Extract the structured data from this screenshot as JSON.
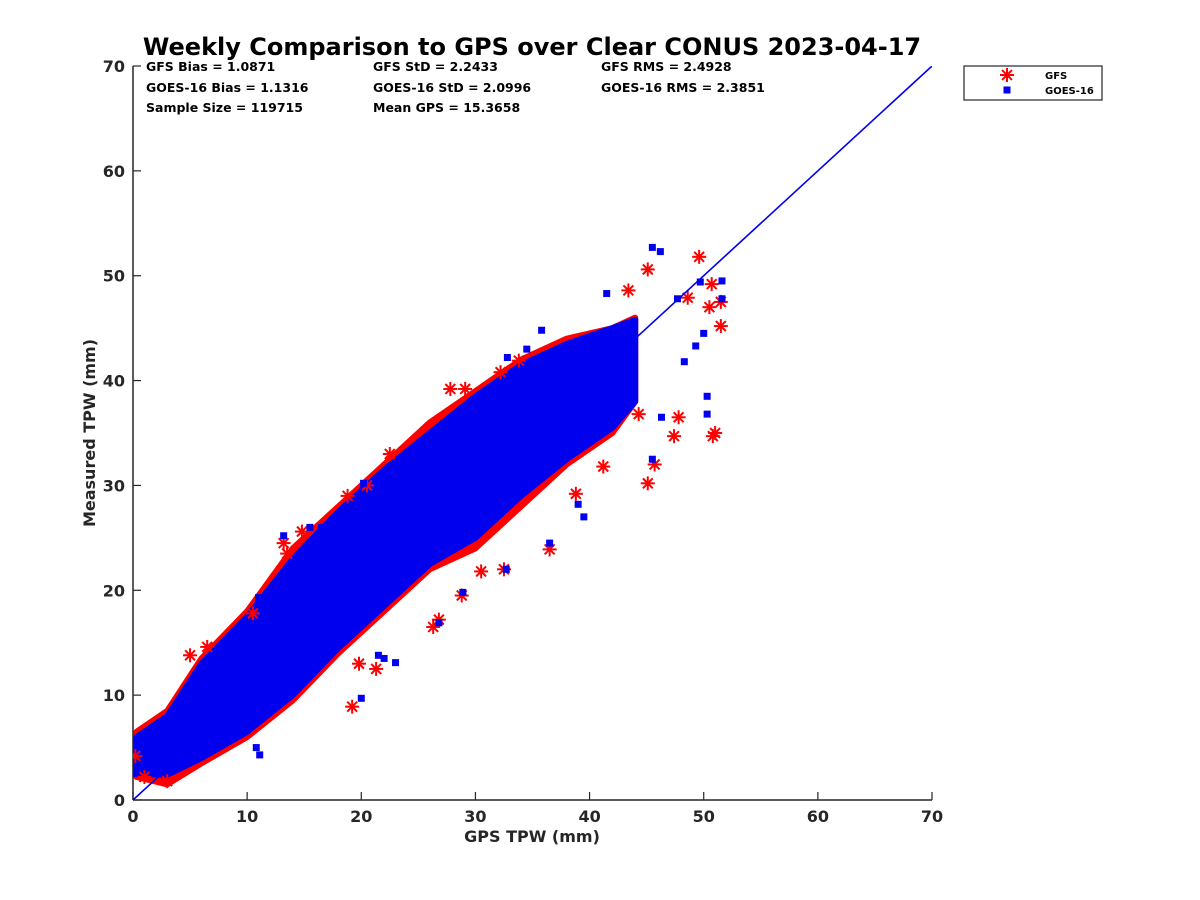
{
  "chart_data": {
    "type": "scatter",
    "title": "Weekly Comparison to GPS over Clear CONUS 2023-04-17",
    "xlabel": "GPS TPW (mm)",
    "ylabel": "Measured TPW (mm)",
    "xlim": [
      0,
      70
    ],
    "ylim": [
      0,
      70
    ],
    "xticks": [
      "0",
      "10",
      "20",
      "30",
      "40",
      "50",
      "60",
      "70"
    ],
    "yticks": [
      "0",
      "10",
      "20",
      "30",
      "40",
      "50",
      "60",
      "70"
    ],
    "grid": false,
    "legend_position": "outside-top-right",
    "stats": {
      "gfs_bias": "GFS Bias = 1.0871",
      "gfs_std": "GFS StD = 2.2433",
      "gfs_rms": "GFS RMS = 2.4928",
      "goes_bias": "GOES-16 Bias = 1.1316",
      "goes_std": "GOES-16 StD = 2.0996",
      "goes_rms": "GOES-16 RMS = 2.3851",
      "sample_size": "Sample Size = 119715",
      "mean_gps": "Mean GPS = 15.3658"
    },
    "reference_line": {
      "name": "1:1",
      "x": [
        0,
        70
      ],
      "y": [
        0,
        70
      ],
      "color": "#0000ee"
    },
    "series": [
      {
        "name": "GFS",
        "marker": "asterisk",
        "color": "#ff0000",
        "core_band": [
          [
            0.3,
            2.2,
            6.5
          ],
          [
            3,
            1.5,
            8.5
          ],
          [
            6,
            3.5,
            13.5
          ],
          [
            10,
            6,
            18
          ],
          [
            14,
            9.5,
            24
          ],
          [
            18,
            14,
            28
          ],
          [
            22,
            18,
            32
          ],
          [
            26,
            22,
            36
          ],
          [
            30,
            24,
            39
          ],
          [
            34,
            28,
            42
          ],
          [
            38,
            32,
            44
          ],
          [
            42,
            35,
            45
          ],
          [
            44,
            38,
            46
          ]
        ],
        "outliers": [
          [
            51.5,
            47.5
          ],
          [
            51.5,
            45.2
          ],
          [
            50.7,
            49.2
          ],
          [
            49.6,
            51.8
          ],
          [
            45.1,
            50.6
          ],
          [
            43.4,
            48.6
          ],
          [
            48.6,
            47.9
          ],
          [
            50.5,
            47
          ],
          [
            51,
            35
          ],
          [
            50.8,
            34.7
          ],
          [
            47.4,
            34.7
          ],
          [
            45.7,
            32
          ],
          [
            45.1,
            30.2
          ],
          [
            47.8,
            36.5
          ],
          [
            44.3,
            36.8
          ],
          [
            33.8,
            41.9
          ],
          [
            32.2,
            40.8
          ],
          [
            29.1,
            39.2
          ],
          [
            27.8,
            39.2
          ],
          [
            36.5,
            23.9
          ],
          [
            38.8,
            29.2
          ],
          [
            41.2,
            31.8
          ],
          [
            32.5,
            22
          ],
          [
            30.5,
            21.8
          ],
          [
            26.3,
            16.5
          ],
          [
            26.8,
            17.2
          ],
          [
            19.2,
            8.9
          ],
          [
            21.3,
            12.5
          ],
          [
            19.8,
            13
          ],
          [
            13.2,
            24.5
          ],
          [
            13.5,
            23.5
          ],
          [
            5,
            13.8
          ],
          [
            6.5,
            14.6
          ],
          [
            10.5,
            17.8
          ],
          [
            18.8,
            29
          ],
          [
            20.5,
            30
          ],
          [
            22.5,
            33
          ],
          [
            0.2,
            4.2
          ],
          [
            1,
            2.2
          ],
          [
            3,
            1.8
          ],
          [
            14.8,
            25.6
          ],
          [
            28.8,
            19.5
          ]
        ]
      },
      {
        "name": "GOES-16",
        "marker": "square",
        "color": "#0000ee",
        "core_band": [
          [
            0.3,
            2.5,
            6
          ],
          [
            3,
            2.4,
            8
          ],
          [
            6,
            4,
            13
          ],
          [
            10,
            6.5,
            17.5
          ],
          [
            14,
            10,
            23
          ],
          [
            18,
            14.5,
            27.5
          ],
          [
            22,
            18.5,
            31.5
          ],
          [
            26,
            22.5,
            35
          ],
          [
            30,
            25,
            38.5
          ],
          [
            34,
            29,
            41.5
          ],
          [
            38,
            32.5,
            43.5
          ],
          [
            42,
            35.5,
            45
          ],
          [
            44,
            38,
            45.8
          ]
        ],
        "outliers": [
          [
            51.6,
            49.5
          ],
          [
            51.6,
            47.8
          ],
          [
            49.7,
            49.4
          ],
          [
            47.7,
            47.8
          ],
          [
            46.2,
            52.3
          ],
          [
            45.5,
            52.7
          ],
          [
            41.5,
            48.3
          ],
          [
            50.3,
            38.5
          ],
          [
            50.3,
            36.8
          ],
          [
            45.5,
            32.5
          ],
          [
            48.3,
            41.8
          ],
          [
            49.3,
            43.3
          ],
          [
            50,
            44.5
          ],
          [
            46.3,
            36.5
          ],
          [
            39,
            28.2
          ],
          [
            39.5,
            27
          ],
          [
            36.5,
            24.5
          ],
          [
            32.7,
            22
          ],
          [
            35.8,
            44.8
          ],
          [
            34.5,
            43
          ],
          [
            32.8,
            42.2
          ],
          [
            20.2,
            30.2
          ],
          [
            15.5,
            26
          ],
          [
            16.5,
            26
          ],
          [
            13.2,
            25.2
          ],
          [
            11,
            19.3
          ],
          [
            11.1,
            4.3
          ],
          [
            10.8,
            5
          ],
          [
            20,
            9.7
          ],
          [
            23,
            13.1
          ],
          [
            22,
            13.5
          ],
          [
            21.5,
            13.8
          ],
          [
            0.1,
            2.5
          ],
          [
            26.8,
            16.9
          ],
          [
            28.9,
            19.8
          ]
        ]
      }
    ]
  }
}
